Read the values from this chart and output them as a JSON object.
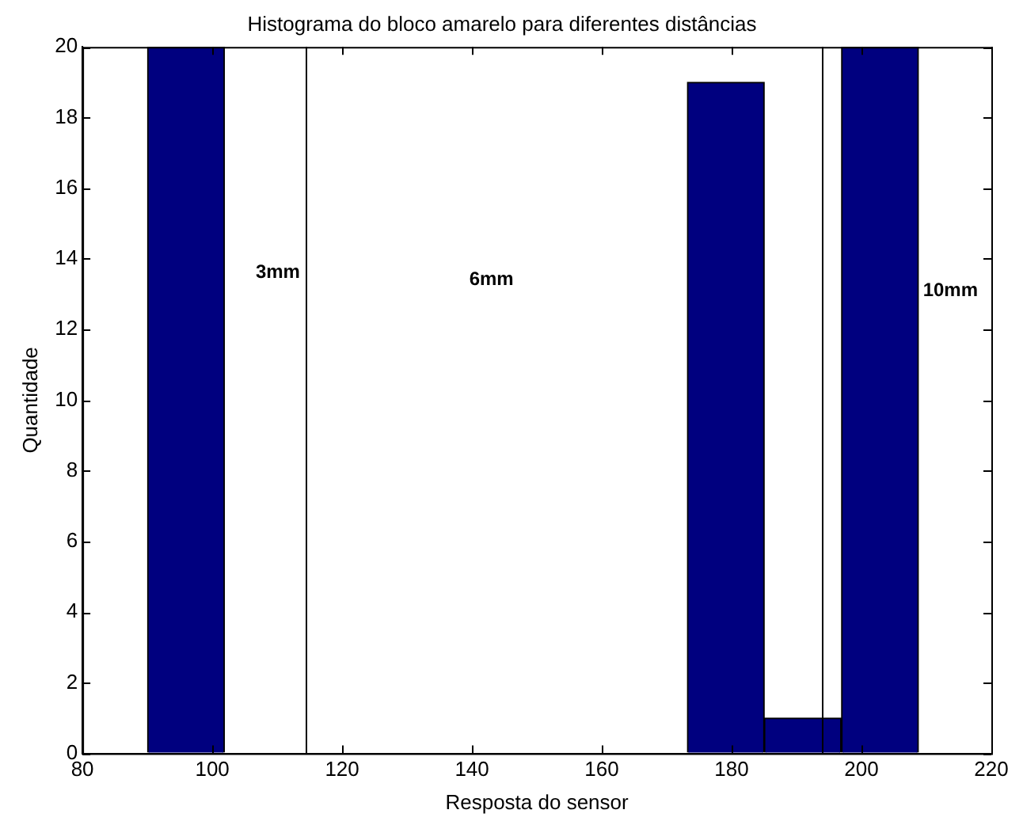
{
  "chart_data": {
    "type": "histogram",
    "title": "Histograma do bloco amarelo para diferentes distâncias",
    "xlabel": "Resposta do sensor",
    "ylabel": "Quantidade",
    "bins": [
      90,
      101.9,
      113.8,
      125.6,
      137.5,
      149.4,
      161.3,
      173.2,
      185,
      196.9,
      208.8
    ],
    "values": [
      20,
      0,
      0,
      0,
      0,
      0,
      0,
      19,
      1,
      20
    ],
    "color": "#00007f",
    "xlim": [
      80,
      220
    ],
    "xticks": [
      80,
      100,
      120,
      140,
      160,
      180,
      200,
      220
    ],
    "ylim": [
      0,
      20
    ],
    "yticks": [
      0,
      2,
      4,
      6,
      8,
      10,
      12,
      14,
      16,
      18,
      20
    ],
    "grid": false,
    "ref_lines": [
      {
        "axis": "x",
        "value": 114.5,
        "color": "#000000"
      },
      {
        "axis": "x",
        "value": 194,
        "color": "#000000"
      }
    ],
    "annotations": [
      "3mm",
      "6mm",
      "10mm"
    ]
  }
}
